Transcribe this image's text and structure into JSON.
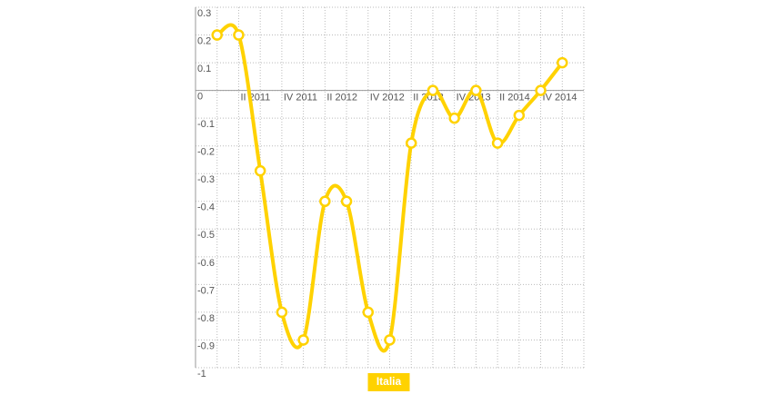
{
  "chart_data": {
    "type": "line",
    "categories": [
      null,
      "II 2011",
      null,
      "IV 2011",
      null,
      "II 2012",
      null,
      "IV 2012",
      null,
      "II 2013",
      null,
      "IV 2013",
      null,
      "II 2014",
      null,
      "IV 2014",
      null
    ],
    "series": [
      {
        "name": "Italia",
        "color": "#ffd200",
        "values": [
          0.2,
          0.2,
          -0.29,
          -0.8,
          -0.9,
          -0.4,
          -0.4,
          -0.8,
          -0.9,
          -0.19,
          0,
          -0.1,
          0,
          -0.19,
          -0.09,
          0,
          0.1
        ]
      }
    ],
    "ylim": [
      -1,
      0.3
    ],
    "yticks": [
      0.3,
      0.2,
      0.1,
      0,
      -0.1,
      -0.2,
      -0.3,
      -0.4,
      -0.5,
      -0.6,
      -0.7,
      -0.8,
      -0.9,
      -1
    ],
    "grid": true
  }
}
